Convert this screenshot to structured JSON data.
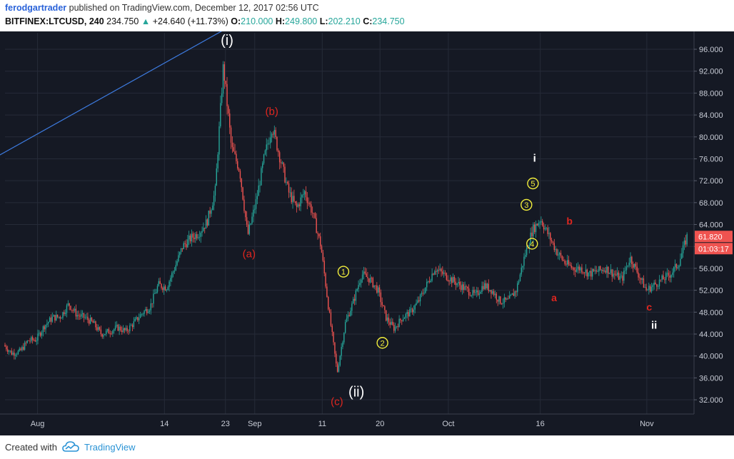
{
  "header": {
    "author": "ferodgartrader",
    "published": "published on TradingView.com, December 12, 2017 02:56 UTC",
    "symbol": "BITFINEX:LTCUSD, 240",
    "last": "234.750",
    "change": "+24.640 (+11.73%)",
    "o_label": "O:",
    "o_val": "210.000",
    "h_label": "H:",
    "h_val": "249.800",
    "l_label": "L:",
    "l_val": "202.210",
    "c_label": "C:",
    "c_val": "234.750",
    "up_arrow": "▲"
  },
  "footer": {
    "created_with": "Created with",
    "brand": "TradingView"
  },
  "colors": {
    "background": "#151924",
    "grid": "#262b38",
    "up": "#26a69a",
    "down": "#ef5350",
    "trendline": "#3d7be0",
    "wave_red": "#e0261f",
    "wave_yellow": "#f2ee3c",
    "text": "#c8ccd6"
  },
  "chart_data": {
    "type": "candlestick",
    "y_ticks": [
      "32.000",
      "36.000",
      "40.000",
      "44.000",
      "48.000",
      "52.000",
      "56.000",
      "60.000",
      "64.000",
      "68.000",
      "72.000",
      "76.000",
      "80.000",
      "84.000",
      "88.000",
      "92.000",
      "96.000"
    ],
    "ylim": [
      29.4,
      99.0
    ],
    "x_ticks": [
      "Aug",
      "14",
      "23",
      "Sep",
      "11",
      "20",
      "Oct",
      "16",
      "Nov"
    ],
    "last_price_label": "61.820",
    "countdown_label": "01:03:17",
    "price_path": [
      [
        0,
        42
      ],
      [
        1,
        40.5
      ],
      [
        2,
        40.8
      ],
      [
        3,
        42.8
      ],
      [
        4,
        43
      ],
      [
        5,
        45.5
      ],
      [
        6,
        47
      ],
      [
        7,
        47.2
      ],
      [
        8,
        49.5
      ],
      [
        9,
        47.5
      ],
      [
        10,
        47
      ],
      [
        11,
        46
      ],
      [
        12,
        44
      ],
      [
        13,
        44.5
      ],
      [
        14,
        45.2
      ],
      [
        15,
        44.5
      ],
      [
        16,
        46
      ],
      [
        17,
        47.8
      ],
      [
        18,
        49
      ],
      [
        19,
        53
      ],
      [
        20,
        52.5
      ],
      [
        21,
        56
      ],
      [
        22,
        60
      ],
      [
        23,
        61.5
      ],
      [
        24,
        62.5
      ],
      [
        25,
        64.5
      ],
      [
        26,
        70
      ],
      [
        27,
        93
      ],
      [
        28,
        78
      ],
      [
        29,
        74
      ],
      [
        30,
        62
      ],
      [
        31,
        68
      ],
      [
        32,
        76
      ],
      [
        33,
        82
      ],
      [
        34,
        76
      ],
      [
        35,
        70
      ],
      [
        36,
        67
      ],
      [
        37,
        70
      ],
      [
        38,
        66
      ],
      [
        39,
        60
      ],
      [
        40,
        48
      ],
      [
        41,
        37
      ],
      [
        42,
        46
      ],
      [
        43,
        50
      ],
      [
        44,
        55
      ],
      [
        45,
        54
      ],
      [
        46,
        52
      ],
      [
        47,
        47
      ],
      [
        48,
        45
      ],
      [
        49,
        47
      ],
      [
        50,
        48
      ],
      [
        51,
        50
      ],
      [
        52,
        53
      ],
      [
        53,
        56
      ],
      [
        54,
        55
      ],
      [
        55,
        54
      ],
      [
        56,
        53
      ],
      [
        57,
        52
      ],
      [
        58,
        51
      ],
      [
        59,
        53
      ],
      [
        60,
        52
      ],
      [
        61,
        50
      ],
      [
        62,
        50
      ],
      [
        63,
        52
      ],
      [
        64,
        58
      ],
      [
        65,
        63
      ],
      [
        66,
        65
      ],
      [
        67,
        62
      ],
      [
        68,
        59
      ],
      [
        69,
        57
      ],
      [
        70,
        56
      ],
      [
        71,
        56
      ],
      [
        72,
        55
      ],
      [
        73,
        55.5
      ],
      [
        74,
        56
      ],
      [
        75,
        55
      ],
      [
        76,
        54
      ],
      [
        77,
        58
      ],
      [
        78,
        55
      ],
      [
        79,
        52
      ],
      [
        80,
        53
      ],
      [
        81,
        54
      ],
      [
        82,
        55
      ],
      [
        83,
        57
      ],
      [
        84,
        61.8
      ]
    ],
    "trendline": {
      "from": [
        -1,
        76.4
      ],
      "to": [
        33.5,
        105
      ]
    },
    "annotations": [
      {
        "text": "(i)",
        "t": 27.3,
        "price": 96.8,
        "style": "white"
      },
      {
        "text": "(b)",
        "t": 32.8,
        "price": 84.0,
        "style": "red"
      },
      {
        "text": "(a)",
        "t": 30.0,
        "price": 58.0,
        "style": "red"
      },
      {
        "text": "(c)",
        "t": 40.8,
        "price": 31.0,
        "style": "red"
      },
      {
        "text": "(ii)",
        "t": 43.2,
        "price": 32.6,
        "style": "white"
      },
      {
        "text": "1",
        "t": 41.6,
        "price": 55.4,
        "style": "yellow"
      },
      {
        "text": "2",
        "t": 46.4,
        "price": 42.4,
        "style": "yellow"
      },
      {
        "text": "3",
        "t": 64.1,
        "price": 67.6,
        "style": "yellow"
      },
      {
        "text": "4",
        "t": 64.8,
        "price": 60.5,
        "style": "yellow"
      },
      {
        "text": "5",
        "t": 64.9,
        "price": 71.5,
        "style": "yellow"
      },
      {
        "text": "i",
        "t": 65.1,
        "price": 75.5,
        "style": "whitebold"
      },
      {
        "text": "b",
        "t": 69.4,
        "price": 64.0,
        "style": "redsmall"
      },
      {
        "text": "a",
        "t": 67.5,
        "price": 50.0,
        "style": "redsmall"
      },
      {
        "text": "c",
        "t": 79.2,
        "price": 48.3,
        "style": "redsmall"
      },
      {
        "text": "ii",
        "t": 79.8,
        "price": 45.0,
        "style": "whitebold"
      }
    ]
  }
}
